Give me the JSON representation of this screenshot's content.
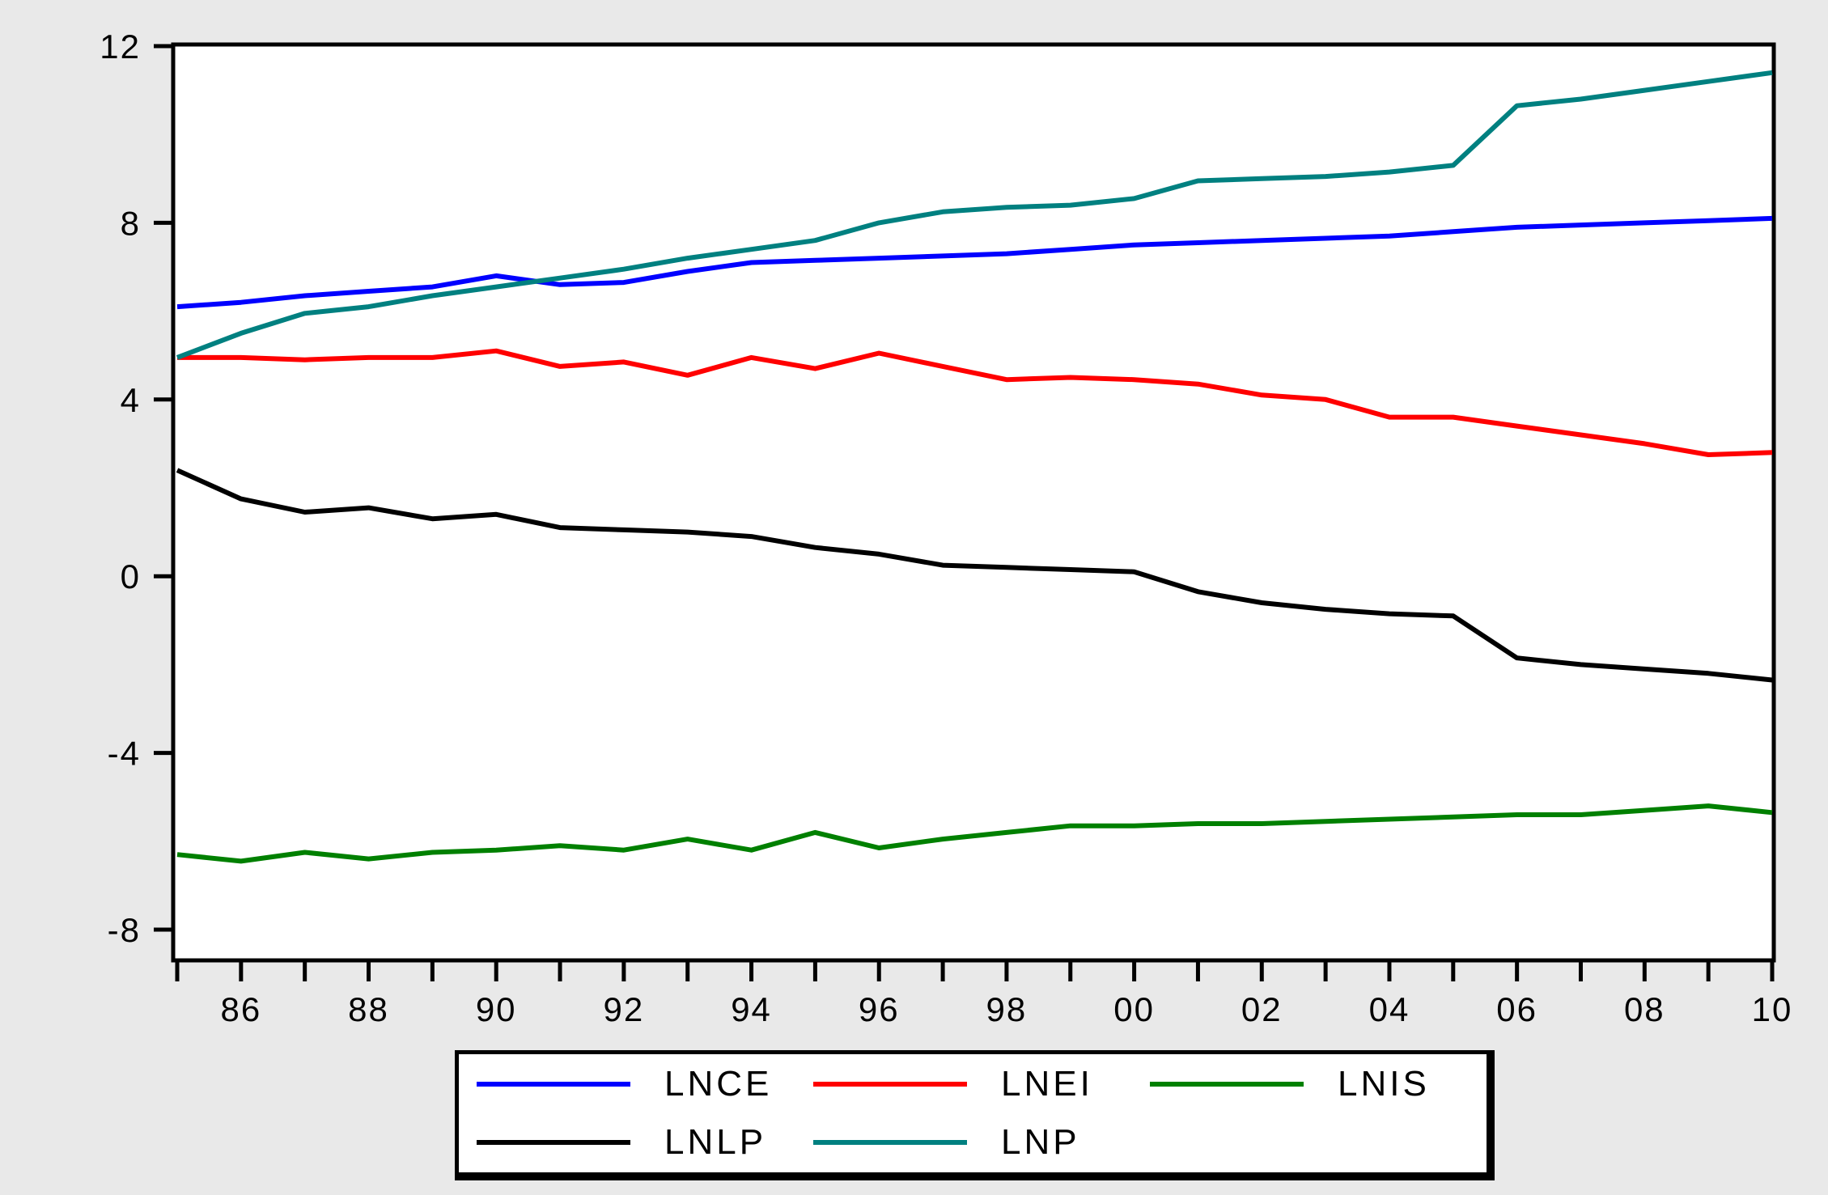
{
  "colors": {
    "background": "#e9e9e9",
    "plot_background": "#ffffff",
    "axis": "#000000"
  },
  "chart_data": {
    "type": "line",
    "title": "",
    "xlabel": "",
    "ylabel": "",
    "grid": false,
    "xlim": [
      1985,
      2010
    ],
    "ylim": [
      -8.75,
      12
    ],
    "x": [
      1985,
      1986,
      1987,
      1988,
      1989,
      1990,
      1991,
      1992,
      1993,
      1994,
      1995,
      1996,
      1997,
      1998,
      1999,
      2000,
      2001,
      2002,
      2003,
      2004,
      2005,
      2006,
      2007,
      2008,
      2009,
      2010
    ],
    "x_tick_years": [
      1985,
      1986,
      1987,
      1988,
      1989,
      1990,
      1991,
      1992,
      1993,
      1994,
      1995,
      1996,
      1997,
      1998,
      1999,
      2000,
      2001,
      2002,
      2003,
      2004,
      2005,
      2006,
      2007,
      2008,
      2009,
      2010
    ],
    "x_labeled_years": [
      1986,
      1988,
      1990,
      1992,
      1994,
      1996,
      1998,
      2000,
      2002,
      2004,
      2006,
      2008,
      2010
    ],
    "x_tick_labels": [
      "86",
      "88",
      "90",
      "92",
      "94",
      "96",
      "98",
      "00",
      "02",
      "04",
      "06",
      "08",
      "10"
    ],
    "y_ticks": [
      12,
      8,
      4,
      0,
      -4,
      -8
    ],
    "y_tick_labels": [
      "12",
      "8",
      "4",
      "0",
      "-4",
      "-8"
    ],
    "legend_position": "bottom",
    "legend_rows": [
      3,
      2
    ],
    "series": [
      {
        "name": "LNCE",
        "color": "#0000ff",
        "values": [
          6.1,
          6.2,
          6.35,
          6.45,
          6.55,
          6.8,
          6.6,
          6.65,
          6.9,
          7.1,
          7.15,
          7.2,
          7.25,
          7.3,
          7.4,
          7.5,
          7.55,
          7.6,
          7.65,
          7.7,
          7.8,
          7.9,
          7.95,
          8.0,
          8.05,
          8.1
        ]
      },
      {
        "name": "LNEI",
        "color": "#ff0000",
        "values": [
          4.95,
          4.95,
          4.9,
          4.95,
          4.95,
          5.1,
          4.75,
          4.85,
          4.55,
          4.95,
          4.7,
          5.05,
          4.75,
          4.45,
          4.5,
          4.45,
          4.35,
          4.1,
          4.0,
          3.6,
          3.6,
          3.4,
          3.2,
          3.0,
          2.75,
          2.8
        ]
      },
      {
        "name": "LNIS",
        "color": "#008000",
        "values": [
          -6.3,
          -6.45,
          -6.25,
          -6.4,
          -6.25,
          -6.2,
          -6.1,
          -6.2,
          -5.95,
          -6.2,
          -5.8,
          -6.15,
          -5.95,
          -5.8,
          -5.65,
          -5.65,
          -5.6,
          -5.6,
          -5.55,
          -5.5,
          -5.45,
          -5.4,
          -5.4,
          -5.3,
          -5.2,
          -5.35
        ]
      },
      {
        "name": "LNLP",
        "color": "#000000",
        "values": [
          2.4,
          1.75,
          1.45,
          1.55,
          1.3,
          1.4,
          1.1,
          1.05,
          1.0,
          0.9,
          0.65,
          0.5,
          0.25,
          0.2,
          0.15,
          0.1,
          -0.35,
          -0.6,
          -0.75,
          -0.85,
          -0.9,
          -1.85,
          -2.0,
          -2.1,
          -2.2,
          -2.35
        ]
      },
      {
        "name": "LNP",
        "color": "#008080",
        "values": [
          4.95,
          5.5,
          5.95,
          6.1,
          6.35,
          6.55,
          6.75,
          6.95,
          7.2,
          7.4,
          7.6,
          8.0,
          8.25,
          8.35,
          8.4,
          8.55,
          8.95,
          9.0,
          9.05,
          9.15,
          9.3,
          10.65,
          10.8,
          11.0,
          11.2,
          11.4
        ]
      }
    ]
  }
}
